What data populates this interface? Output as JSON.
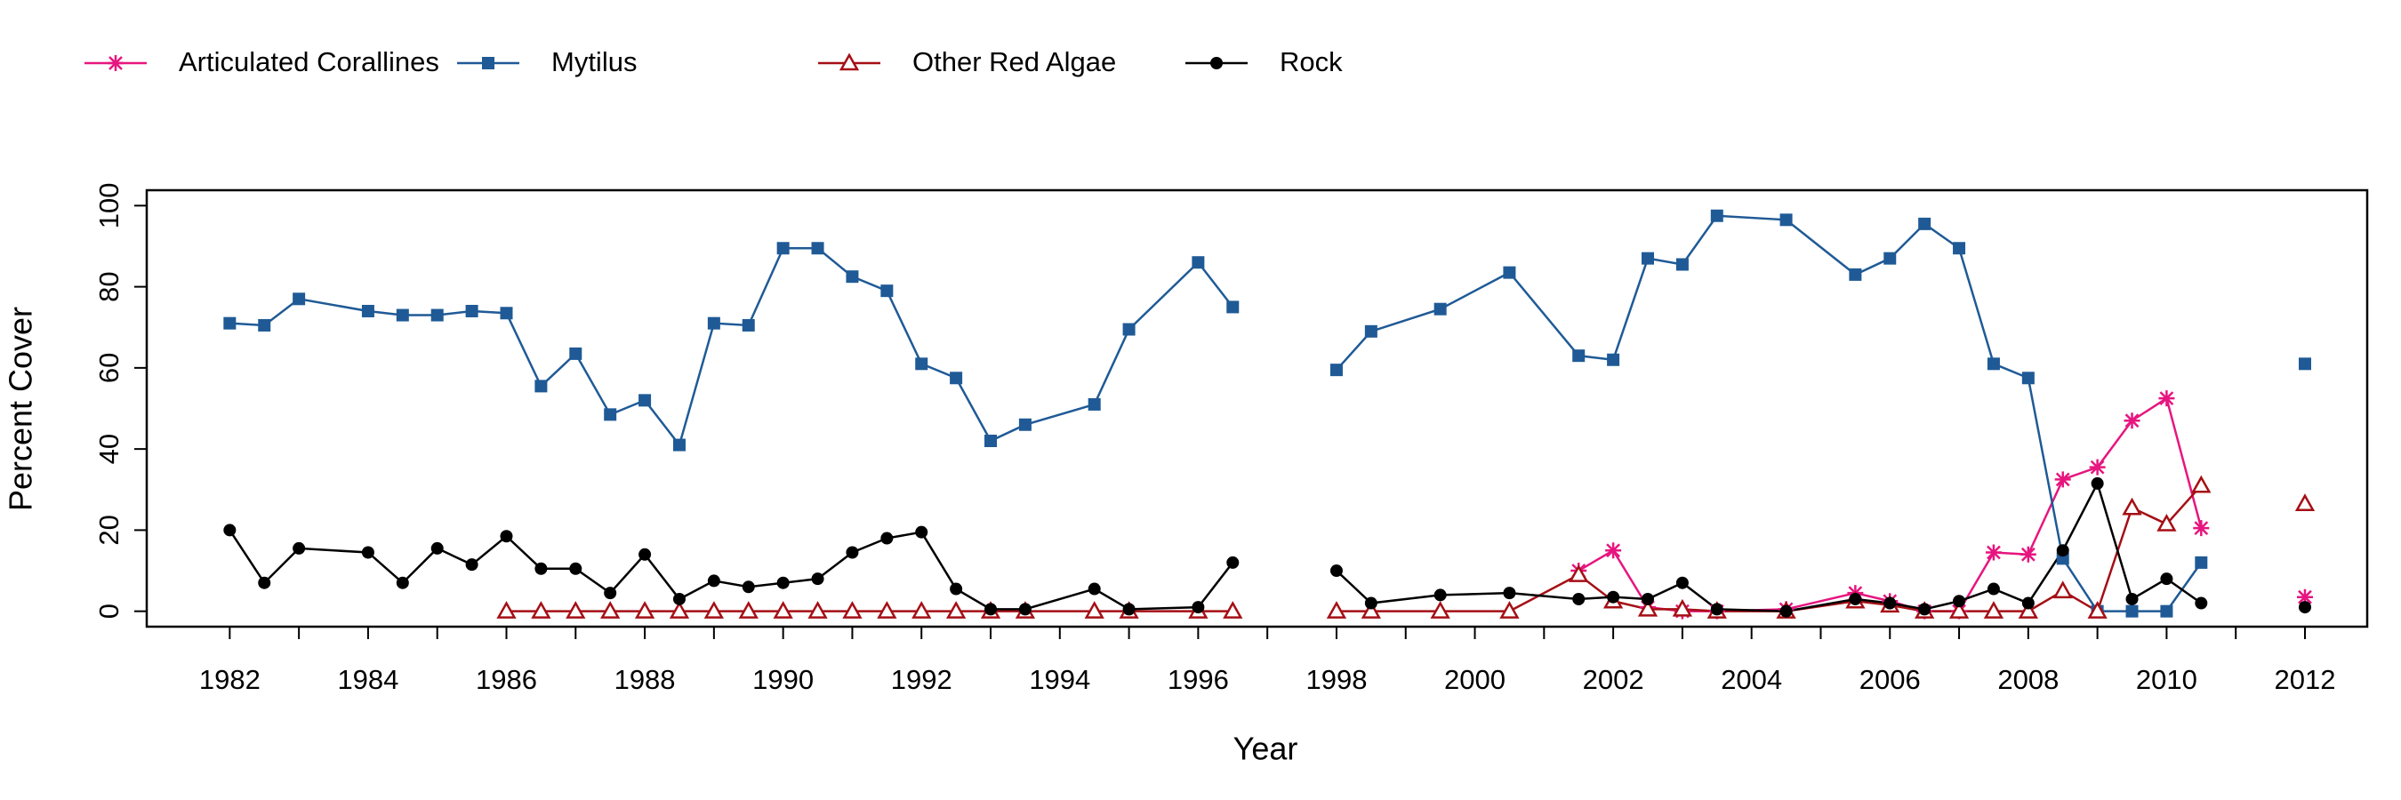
{
  "chart_data": {
    "type": "line",
    "x_label": "Year",
    "y_label": "Percent Cover",
    "x": [
      1982,
      1982.5,
      1983,
      1984,
      1984.5,
      1985,
      1985.5,
      1986,
      1986.5,
      1987,
      1987.5,
      1988,
      1988.5,
      1989,
      1989.5,
      1990,
      1990.5,
      1991,
      1991.5,
      1992,
      1992.5,
      1993,
      1993.5,
      1994.5,
      1995,
      1996,
      1996.5,
      1997,
      1998,
      1998.5,
      1999.5,
      2000.5,
      2001.5,
      2002,
      2002.5,
      2003,
      2003.5,
      2004.5,
      2005.5,
      2006,
      2006.5,
      2007,
      2007.5,
      2008,
      2008.5,
      2009,
      2009.5,
      2010,
      2010.5,
      2011,
      2012
    ],
    "series": [
      {
        "name": "Articulated Corallines",
        "color": "#e7157f",
        "marker": "asterisk",
        "values": [
          null,
          null,
          null,
          null,
          null,
          null,
          null,
          null,
          null,
          null,
          null,
          null,
          null,
          null,
          null,
          null,
          null,
          null,
          null,
          null,
          null,
          null,
          null,
          null,
          null,
          null,
          null,
          null,
          null,
          null,
          null,
          null,
          10,
          15,
          1,
          0,
          0,
          0.5,
          4.5,
          2.5,
          0,
          0,
          14.5,
          14,
          32.5,
          35.5,
          47,
          52.5,
          20.5,
          null,
          3.5
        ]
      },
      {
        "name": "Mytilus",
        "color": "#1f5a96",
        "marker": "square",
        "values": [
          71,
          70.5,
          77,
          74,
          73,
          73,
          74,
          73.5,
          55.5,
          63.5,
          48.5,
          52,
          41,
          71,
          70.5,
          89.5,
          89.5,
          82.5,
          79,
          61,
          57.5,
          42,
          46,
          51,
          69.5,
          86,
          75,
          null,
          59.5,
          69,
          74.5,
          83.5,
          63,
          62,
          87,
          85.5,
          97.5,
          96.5,
          83,
          87,
          95.5,
          89.5,
          61,
          57.5,
          13,
          0,
          0,
          0,
          12,
          null,
          61
        ]
      },
      {
        "name": "Other Red Algae",
        "color": "#a50f15",
        "marker": "triangle",
        "values": [
          null,
          null,
          null,
          null,
          null,
          null,
          null,
          0,
          0,
          0,
          0,
          0,
          0,
          0,
          0,
          0,
          0,
          0,
          0,
          0,
          0,
          0,
          0,
          0,
          0,
          0,
          0,
          null,
          0,
          0,
          0,
          0,
          9,
          2.5,
          0.5,
          0.5,
          0,
          0,
          2.5,
          1.5,
          0,
          0,
          0,
          0,
          5,
          0,
          25.5,
          21.5,
          31,
          null,
          26.5
        ]
      },
      {
        "name": "Rock",
        "color": "#000000",
        "marker": "circle",
        "values": [
          20,
          7,
          15.5,
          14.5,
          7,
          15.5,
          11.5,
          18.5,
          10.5,
          10.5,
          4.5,
          14,
          3,
          7.5,
          6,
          7,
          8,
          14.5,
          18,
          19.5,
          5.5,
          0.5,
          0.5,
          5.5,
          0.5,
          1,
          12,
          null,
          10,
          2,
          4,
          4.5,
          3,
          3.5,
          3,
          7,
          0.5,
          0,
          3,
          2,
          0.5,
          2.5,
          5.5,
          2,
          15,
          31.5,
          3,
          8,
          2,
          null,
          1
        ]
      }
    ],
    "xlim": [
      1980.8,
      2012.9
    ],
    "ylim": [
      -3.8,
      103.8
    ],
    "xticks": [
      1982,
      1984,
      1986,
      1988,
      1990,
      1992,
      1994,
      1996,
      1998,
      2000,
      2002,
      2004,
      2006,
      2008,
      2010,
      2012
    ],
    "xminorticks": [
      1983,
      1985,
      1987,
      1989,
      1991,
      1993,
      1995,
      1997,
      1999,
      2001,
      2003,
      2005,
      2007,
      2009,
      2011
    ],
    "yticks": [
      0,
      20,
      40,
      60,
      80,
      100
    ],
    "legend": "top-left"
  }
}
